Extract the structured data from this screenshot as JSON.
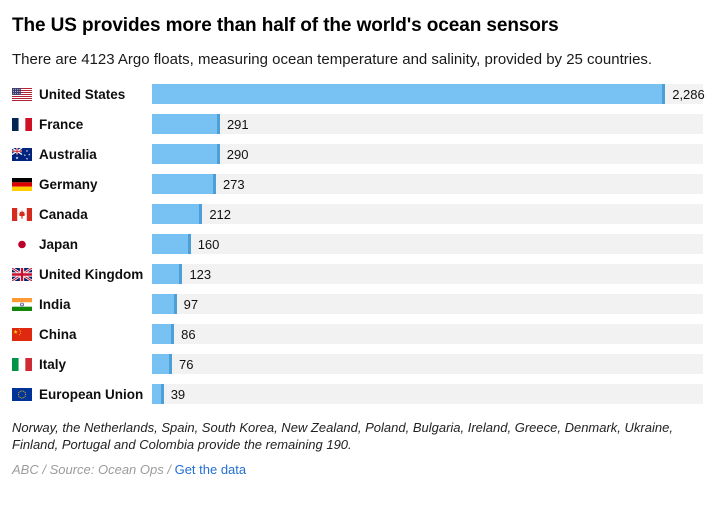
{
  "header": {
    "title": "The US provides more than half of the world's ocean sensors",
    "subtitle": "There are 4123 Argo floats, measuring ocean temperature and salinity, provided by 25 countries."
  },
  "chart_data": {
    "type": "bar",
    "orientation": "horizontal",
    "title": "The US provides more than half of the world's ocean sensors",
    "subtitle": "There are 4123 Argo floats, measuring ocean temperature and salinity, provided by 25 countries.",
    "categories": [
      "United States",
      "France",
      "Australia",
      "Germany",
      "Canada",
      "Japan",
      "United Kingdom",
      "India",
      "China",
      "Italy",
      "European Union"
    ],
    "values": [
      2286,
      291,
      290,
      273,
      212,
      160,
      123,
      97,
      86,
      76,
      39
    ],
    "value_labels": [
      "2,286",
      "291",
      "290",
      "273",
      "212",
      "160",
      "123",
      "97",
      "86",
      "76",
      "39"
    ],
    "flags": [
      "us",
      "fr",
      "au",
      "de",
      "ca",
      "jp",
      "gb",
      "in",
      "cn",
      "it",
      "eu"
    ],
    "max_value": 2286,
    "total_floats": 4123,
    "xlim": [
      0,
      2286
    ],
    "grid": false,
    "legend": "none",
    "colors": {
      "bar": "#78c2f3",
      "bar_cap": "#4d9fd8",
      "track": "#f2f2f2"
    }
  },
  "footnote": "Norway, the Netherlands, Spain, South Korea, New Zealand, Poland, Bulgaria, Ireland, Greece, Denmark, Ukraine, Finland, Portugal and Colombia provide the remaining 190.",
  "source": {
    "text": "ABC / Source: Ocean Ops / ",
    "link_label": "Get the data",
    "link_color": "#2470d2"
  }
}
